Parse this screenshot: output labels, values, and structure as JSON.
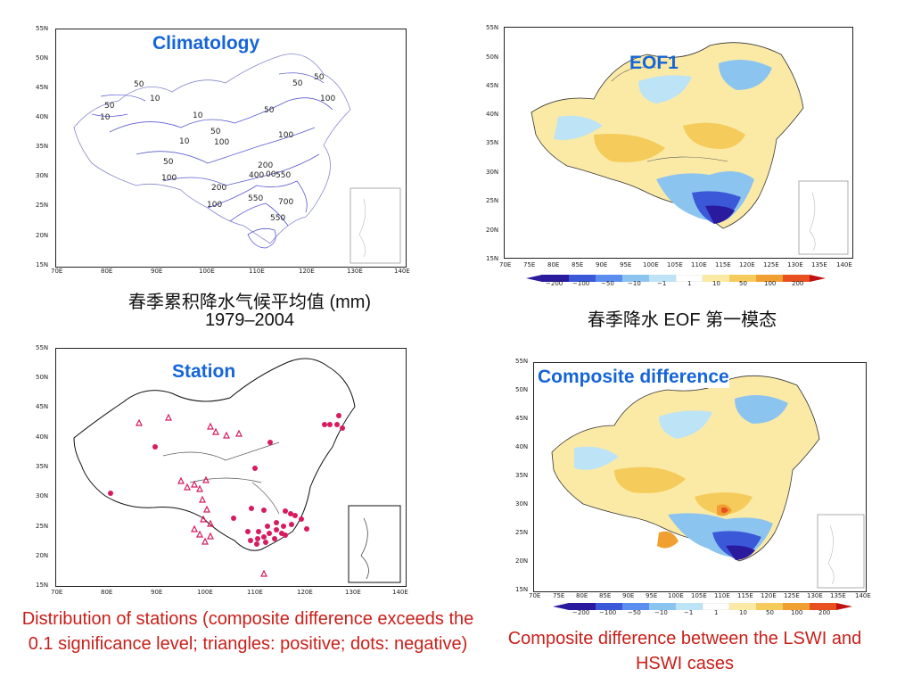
{
  "panels": {
    "climatology": {
      "title": "Climatology",
      "caption_line1": "春季累积降水气候平均值 (mm)",
      "caption_line2": "1979–2004",
      "contour_labels": [
        "50",
        "50",
        "10",
        "50",
        "10",
        "10",
        "50",
        "100",
        "50",
        "10",
        "50",
        "100",
        "10",
        "100",
        "50",
        "100",
        "200",
        "100",
        "400",
        "00",
        "550",
        "200",
        "550",
        "700",
        "100",
        "550"
      ]
    },
    "eof1": {
      "title": "EOF1",
      "caption": "春季降水 EOF 第一模态",
      "colorbar": [
        "−200",
        "−100",
        "−50",
        "−10",
        "−1",
        "1",
        "10",
        "50",
        "100",
        "200"
      ]
    },
    "station": {
      "title": "Station",
      "caption": "Distribution of stations (composite difference exceeds the 0.1 significance level; triangles: positive; dots: negative)"
    },
    "composite": {
      "title": "Composite difference",
      "caption": "Composite difference between the LSWI and HSWI cases",
      "colorbar": [
        "−200",
        "−100",
        "−50",
        "−10",
        "−1",
        "1",
        "10",
        "50",
        "100",
        "200"
      ]
    }
  },
  "axes": {
    "lat_labels": [
      "55N",
      "50N",
      "45N",
      "40N",
      "35N",
      "30N",
      "25N",
      "20N",
      "15N"
    ],
    "lon_labels_coarse": [
      "70E",
      "80E",
      "90E",
      "100E",
      "110E",
      "120E",
      "130E",
      "140E"
    ],
    "lon_labels_fine": [
      "70E",
      "75E",
      "80E",
      "85E",
      "90E",
      "95E",
      "100E",
      "105E",
      "110E",
      "115E",
      "120E",
      "125E",
      "130E",
      "135E",
      "140E"
    ]
  },
  "colors": {
    "title_blue": "#1565d8",
    "caption_red": "#c8201a",
    "station_marker": "#d81b60",
    "contour": "#5a5ad0",
    "colorbar": [
      "#2a1a9e",
      "#3a58d8",
      "#5c8ef0",
      "#8cc4f0",
      "#bde3f7",
      "#ffffff",
      "#fbeaa6",
      "#f5cb5c",
      "#f0a030",
      "#e85020",
      "#c01010"
    ]
  }
}
